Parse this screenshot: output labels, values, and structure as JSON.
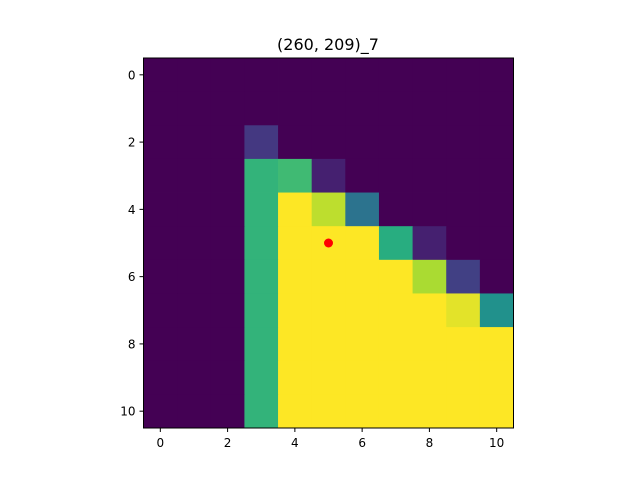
{
  "chart_data": {
    "type": "heatmap",
    "title": "(260, 209)_7",
    "xlabel": "",
    "ylabel": "",
    "colormap": "viridis",
    "vmin": 0,
    "vmax": 1,
    "x_ticks": [
      "0",
      "2",
      "4",
      "6",
      "8",
      "10"
    ],
    "y_ticks": [
      "0",
      "2",
      "4",
      "6",
      "8",
      "10"
    ],
    "xlim": [
      -0.5,
      10.5
    ],
    "ylim": [
      10.5,
      -0.5
    ],
    "grid": false,
    "matrix": [
      [
        0,
        0,
        0,
        0,
        0,
        0,
        0,
        0,
        0,
        0,
        0
      ],
      [
        0,
        0,
        0,
        0,
        0,
        0,
        0,
        0,
        0,
        0,
        0
      ],
      [
        0,
        0,
        0,
        0.15,
        0,
        0,
        0,
        0,
        0,
        0,
        0
      ],
      [
        0,
        0,
        0,
        0.65,
        0.68,
        0.08,
        0,
        0,
        0,
        0,
        0
      ],
      [
        0,
        0,
        0,
        0.65,
        1,
        0.9,
        0.38,
        0,
        0,
        0,
        0
      ],
      [
        0,
        0,
        0,
        0.65,
        1,
        1,
        1,
        0.62,
        0.08,
        0,
        0
      ],
      [
        0,
        0,
        0,
        0.65,
        1,
        1,
        1,
        1,
        0.87,
        0.18,
        0
      ],
      [
        0,
        0,
        0,
        0.65,
        1,
        1,
        1,
        1,
        1,
        0.96,
        0.5
      ],
      [
        0,
        0,
        0,
        0.65,
        1,
        1,
        1,
        1,
        1,
        1,
        1
      ],
      [
        0,
        0,
        0,
        0.65,
        1,
        1,
        1,
        1,
        1,
        1,
        1
      ],
      [
        0,
        0,
        0,
        0.65,
        1,
        1,
        1,
        1,
        1,
        1,
        1
      ]
    ],
    "marker": {
      "x": 5,
      "y": 5,
      "color": "#ff0000"
    }
  }
}
